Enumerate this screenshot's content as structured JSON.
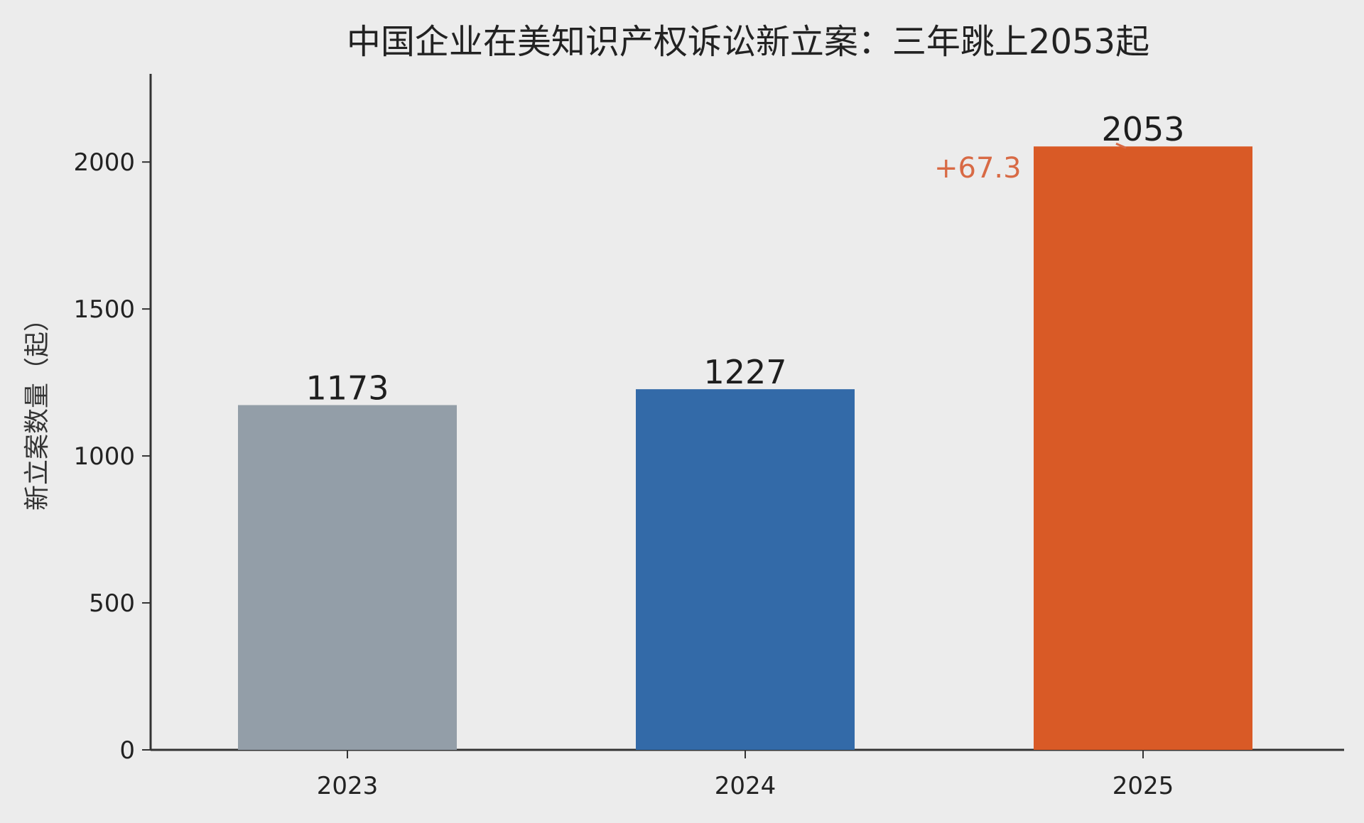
{
  "chart_data": {
    "type": "bar",
    "title": "中国企业在美知识产权诉讼新立案：三年跳上2053起",
    "xlabel": "",
    "ylabel": "新立案数量（起）",
    "categories": [
      "2023",
      "2024",
      "2025"
    ],
    "values": [
      1173,
      1227,
      2053
    ],
    "value_labels": [
      "1173",
      "1227",
      "2053"
    ],
    "bar_colors": [
      "#939ea8",
      "#336aa8",
      "#d95a26"
    ],
    "ylim": [
      0,
      2300
    ],
    "yticks": [
      0,
      500,
      1000,
      1500,
      2000
    ],
    "ytick_labels": [
      "0",
      "500",
      "1000",
      "1500",
      "2000"
    ],
    "grid": false,
    "annotation": {
      "text": "+67.3",
      "color": "#d86a45",
      "category": "2025"
    }
  }
}
